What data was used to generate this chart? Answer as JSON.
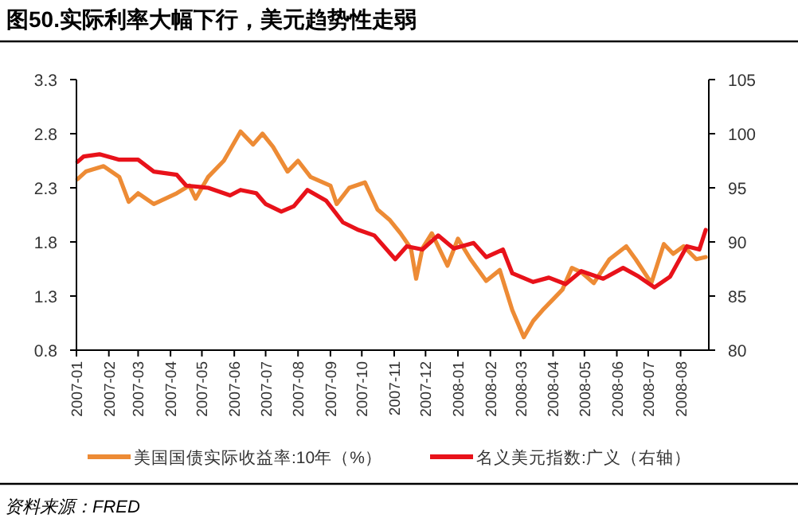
{
  "chart_data": {
    "type": "line",
    "title": "图50.实际利率大幅下行，美元趋势性走弱",
    "xlim": [
      "2007-01-01",
      "2008-08-28"
    ],
    "xticks": [
      "2007-01",
      "2007-02",
      "2007-03",
      "2007-04",
      "2007-05",
      "2007-06",
      "2007-07",
      "2007-08",
      "2007-09",
      "2007-10",
      "2007-11",
      "2007-12",
      "2008-01",
      "2008-02",
      "2008-03",
      "2008-04",
      "2008-05",
      "2008-06",
      "2008-07",
      "2008-08"
    ],
    "ylim": [
      0.8,
      3.3
    ],
    "yticks": [
      0.8,
      1.3,
      1.8,
      2.3,
      2.8,
      3.3
    ],
    "y2lim": [
      80,
      105
    ],
    "y2ticks": [
      80,
      85,
      90,
      95,
      100,
      105
    ],
    "legend": "bottom",
    "series": [
      {
        "name": "美国国债实际收益率:10年（%）",
        "color": "#ed8b35",
        "x": [
          "2007-01-02",
          "2007-01-10",
          "2007-01-27",
          "2007-02-11",
          "2007-02-20",
          "2007-03-01",
          "2007-03-16",
          "2007-04-07",
          "2007-04-19",
          "2007-04-25",
          "2007-05-07",
          "2007-05-22",
          "2007-06-07",
          "2007-06-19",
          "2007-06-28",
          "2007-07-08",
          "2007-07-22",
          "2007-08-01",
          "2007-08-13",
          "2007-09-01",
          "2007-09-07",
          "2007-09-19",
          "2007-10-04",
          "2007-10-16",
          "2007-10-28",
          "2007-11-07",
          "2007-11-17",
          "2007-11-22",
          "2007-11-28",
          "2007-12-07",
          "2007-12-22",
          "2008-01-01",
          "2008-01-13",
          "2008-01-28",
          "2008-02-10",
          "2008-02-22",
          "2008-03-04",
          "2008-03-13",
          "2008-03-22",
          "2008-04-01",
          "2008-04-10",
          "2008-04-19",
          "2008-04-28",
          "2008-05-10",
          "2008-05-25",
          "2008-06-10",
          "2008-06-19",
          "2008-07-04",
          "2008-07-16",
          "2008-07-25",
          "2008-08-04",
          "2008-08-16",
          "2008-08-25"
        ],
        "values": [
          2.38,
          2.45,
          2.5,
          2.4,
          2.17,
          2.25,
          2.15,
          2.25,
          2.32,
          2.2,
          2.4,
          2.55,
          2.82,
          2.7,
          2.8,
          2.68,
          2.45,
          2.55,
          2.4,
          2.32,
          2.15,
          2.3,
          2.35,
          2.1,
          2.0,
          1.88,
          1.74,
          1.46,
          1.74,
          1.88,
          1.58,
          1.83,
          1.64,
          1.44,
          1.54,
          1.17,
          0.92,
          1.07,
          1.17,
          1.27,
          1.36,
          1.56,
          1.52,
          1.42,
          1.64,
          1.76,
          1.64,
          1.42,
          1.78,
          1.69,
          1.76,
          1.64,
          1.66
        ]
      },
      {
        "name": "名义美元指数:广义（右轴）",
        "color": "#e8121a",
        "axis": "y2",
        "x": [
          "2007-01-02",
          "2007-01-08",
          "2007-01-23",
          "2007-02-11",
          "2007-03-01",
          "2007-03-16",
          "2007-04-07",
          "2007-04-16",
          "2007-05-07",
          "2007-05-28",
          "2007-06-07",
          "2007-06-22",
          "2007-07-01",
          "2007-07-16",
          "2007-07-28",
          "2007-08-10",
          "2007-08-28",
          "2007-09-13",
          "2007-09-28",
          "2007-10-13",
          "2007-11-02",
          "2007-11-13",
          "2007-11-28",
          "2007-12-13",
          "2007-12-28",
          "2008-01-16",
          "2008-01-28",
          "2008-02-13",
          "2008-02-22",
          "2008-03-13",
          "2008-03-28",
          "2008-04-13",
          "2008-04-28",
          "2008-05-19",
          "2008-06-07",
          "2008-06-22",
          "2008-07-07",
          "2008-07-22",
          "2008-08-07",
          "2008-08-19",
          "2008-08-25"
        ],
        "values": [
          97.4,
          97.9,
          98.1,
          97.6,
          97.6,
          96.5,
          96.2,
          95.2,
          95.0,
          94.3,
          94.8,
          94.5,
          93.5,
          92.8,
          93.3,
          94.8,
          93.8,
          91.8,
          91.1,
          90.6,
          88.4,
          89.6,
          89.3,
          90.6,
          89.4,
          89.9,
          88.6,
          89.3,
          87.1,
          86.3,
          86.7,
          86.1,
          87.3,
          86.6,
          87.6,
          86.8,
          85.8,
          86.8,
          89.6,
          89.3,
          91.1
        ]
      }
    ],
    "annotations": [
      "资料来源：FRED"
    ]
  }
}
